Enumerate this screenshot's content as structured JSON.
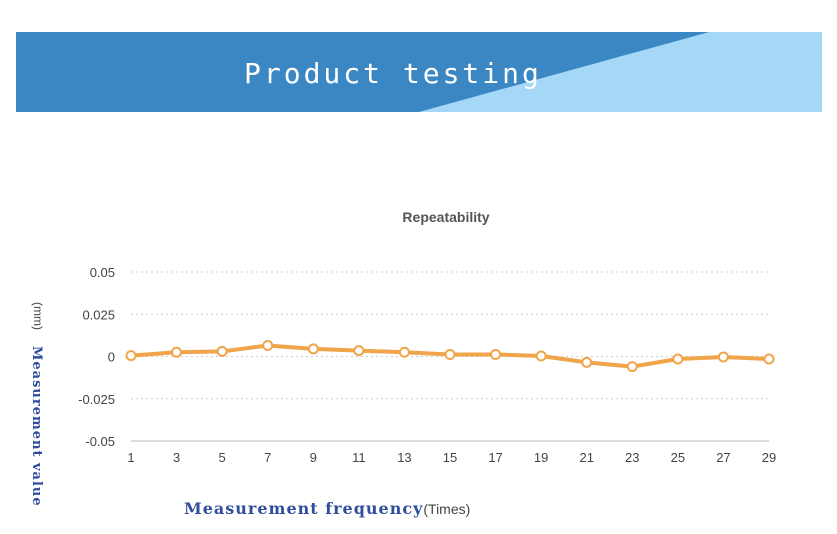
{
  "banner": {
    "title": "Product testing"
  },
  "chart_data": {
    "type": "line",
    "title": "Repeatability",
    "xlabel": "Measurement frequency",
    "xlabel_unit": "(Times)",
    "ylabel": "Measurement value",
    "ylabel_unit": "(mm)",
    "ylim": [
      -0.05,
      0.05
    ],
    "yticks": [
      0.05,
      0.025,
      0,
      -0.025,
      -0.05
    ],
    "ytick_labels": [
      "0.05",
      "0.025",
      "0",
      "-0.025",
      "-0.05"
    ],
    "xticks": [
      1,
      3,
      5,
      7,
      9,
      11,
      13,
      15,
      17,
      19,
      21,
      23,
      25,
      27,
      29
    ],
    "grid": true,
    "colors": {
      "line": "#f0a54a",
      "grid": "#cccccc",
      "axis": "#bbbbbb"
    },
    "series": [
      {
        "x": [
          1,
          3,
          5,
          7,
          9,
          11,
          13,
          15,
          17,
          19,
          21,
          23,
          25,
          27,
          29
        ],
        "values": [
          0.0005,
          0.0025,
          0.003,
          0.0065,
          0.0045,
          0.0035,
          0.0025,
          0.0012,
          0.0012,
          0.0003,
          -0.0035,
          -0.006,
          -0.0015,
          -0.0003,
          -0.0015
        ]
      }
    ]
  }
}
